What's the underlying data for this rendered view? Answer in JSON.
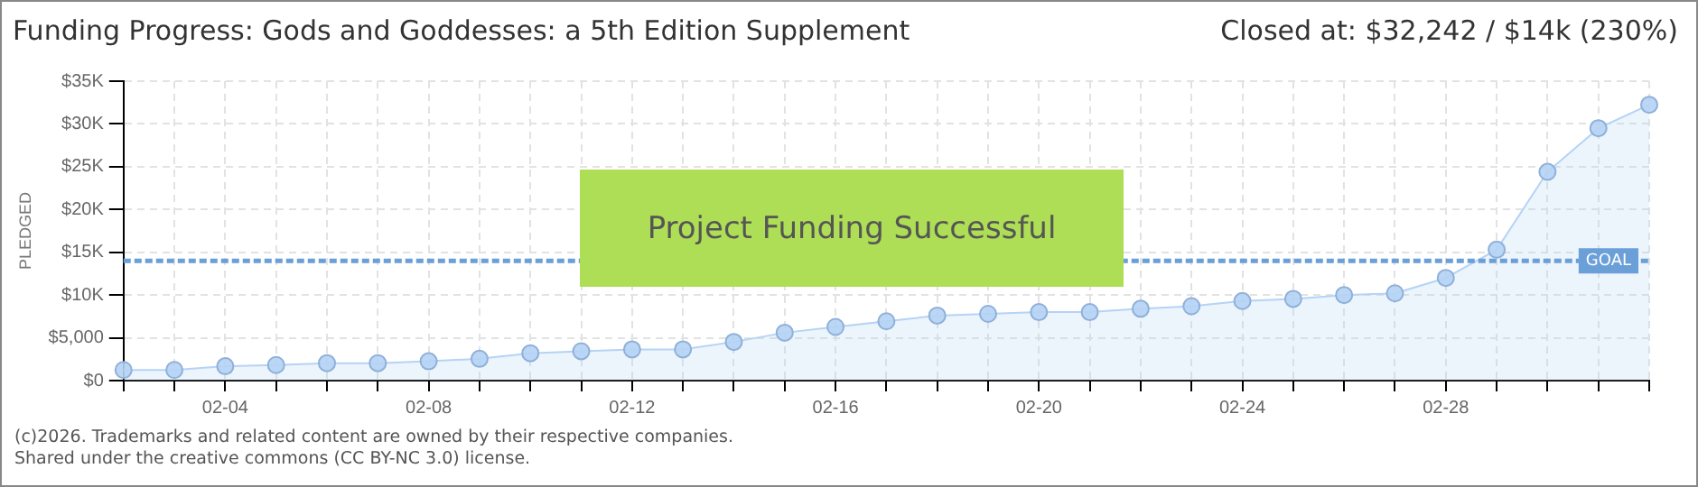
{
  "chart_data": {
    "type": "area",
    "title": "Funding Progress: Gods and Goddesses: a 5th Edition Supplement",
    "ylabel": "PLEDGED",
    "categories": [
      null,
      null,
      "02-04",
      null,
      null,
      null,
      "02-08",
      null,
      null,
      null,
      "02-12",
      null,
      null,
      null,
      "02-16",
      null,
      null,
      null,
      "02-20",
      null,
      null,
      null,
      "02-24",
      null,
      null,
      null,
      "02-28",
      null,
      null,
      null,
      null
    ],
    "series": [
      {
        "color": "#b5d3f5",
        "values": [
          1240,
          1240,
          1680,
          1820,
          2040,
          2040,
          2260,
          2550,
          3200,
          3430,
          3650,
          3650,
          4520,
          5600,
          6270,
          6930,
          7600,
          7800,
          8000,
          8000,
          8400,
          8700,
          9300,
          9550,
          10000,
          10200,
          12000,
          15300,
          24400,
          29500,
          32242
        ]
      }
    ],
    "ylim": [
      0,
      35000
    ],
    "yticks": [
      {
        "value": 0,
        "label": "$0"
      },
      {
        "value": 5000,
        "label": "$5,000"
      },
      {
        "value": 10000,
        "label": "$10K"
      },
      {
        "value": 15000,
        "label": "$15K"
      },
      {
        "value": 20000,
        "label": "$20K"
      },
      {
        "value": 25000,
        "label": "$25K"
      },
      {
        "value": 30000,
        "label": "$30K"
      },
      {
        "value": 35000,
        "label": "$35K"
      }
    ],
    "grid": true,
    "legend": false,
    "marker": "circle",
    "ref_lines": [
      {
        "axis": "y",
        "value": 14000,
        "label": "GOAL",
        "color": "#6a9fd8",
        "line_style": "dashed"
      }
    ],
    "annotations": [
      "Project Funding Successful",
      "Closed at: $32,242 / $14k (230%)",
      "(c)2026. Trademarks and related content are owned by their respective companies.",
      "Shared under the creative commons (CC BY-NC 3.0) license."
    ]
  }
}
